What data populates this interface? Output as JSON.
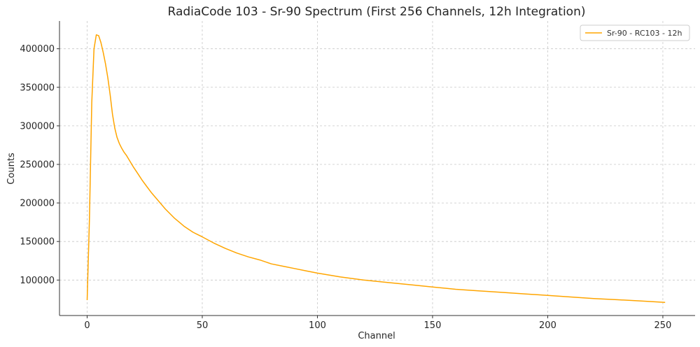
{
  "chart_data": {
    "type": "line",
    "title": "RadiaCode 103 - Sr-90 Spectrum (First 256 Channels, 12h Integration)",
    "xlabel": "Channel",
    "ylabel": "Counts",
    "xlim": [
      -12,
      264
    ],
    "ylim": [
      54000,
      436000
    ],
    "xticks": [
      0,
      50,
      100,
      150,
      200,
      250
    ],
    "yticks": [
      100000,
      150000,
      200000,
      250000,
      300000,
      350000,
      400000
    ],
    "grid": true,
    "legend_position": "top-right",
    "series": [
      {
        "name": "Sr-90 - RC103 - 12h",
        "color": "#FFA500",
        "x": [
          0,
          1,
          2,
          3,
          4,
          5,
          6,
          7,
          8,
          9,
          10,
          11,
          12,
          13,
          14,
          15,
          16,
          17,
          18,
          19,
          20,
          22,
          24,
          26,
          28,
          30,
          32,
          34,
          36,
          38,
          40,
          42,
          44,
          46,
          48,
          50,
          55,
          60,
          65,
          70,
          75,
          80,
          85,
          90,
          95,
          100,
          110,
          120,
          130,
          140,
          150,
          160,
          170,
          180,
          190,
          200,
          210,
          220,
          230,
          240,
          251
        ],
        "y": [
          74000,
          180000,
          330000,
          400000,
          418000,
          417000,
          408000,
          395000,
          380000,
          362000,
          340000,
          315000,
          297000,
          285000,
          277000,
          271000,
          266000,
          262000,
          257000,
          252000,
          247000,
          238000,
          229000,
          221000,
          213000,
          206000,
          199000,
          192000,
          186000,
          180000,
          175000,
          170000,
          166000,
          162000,
          159000,
          156000,
          148000,
          141000,
          135000,
          130000,
          126000,
          121000,
          118000,
          115000,
          112000,
          109000,
          104000,
          100000,
          97000,
          94000,
          91000,
          88000,
          86000,
          84000,
          82000,
          80000,
          78000,
          76000,
          74500,
          73000,
          71000
        ]
      }
    ]
  }
}
